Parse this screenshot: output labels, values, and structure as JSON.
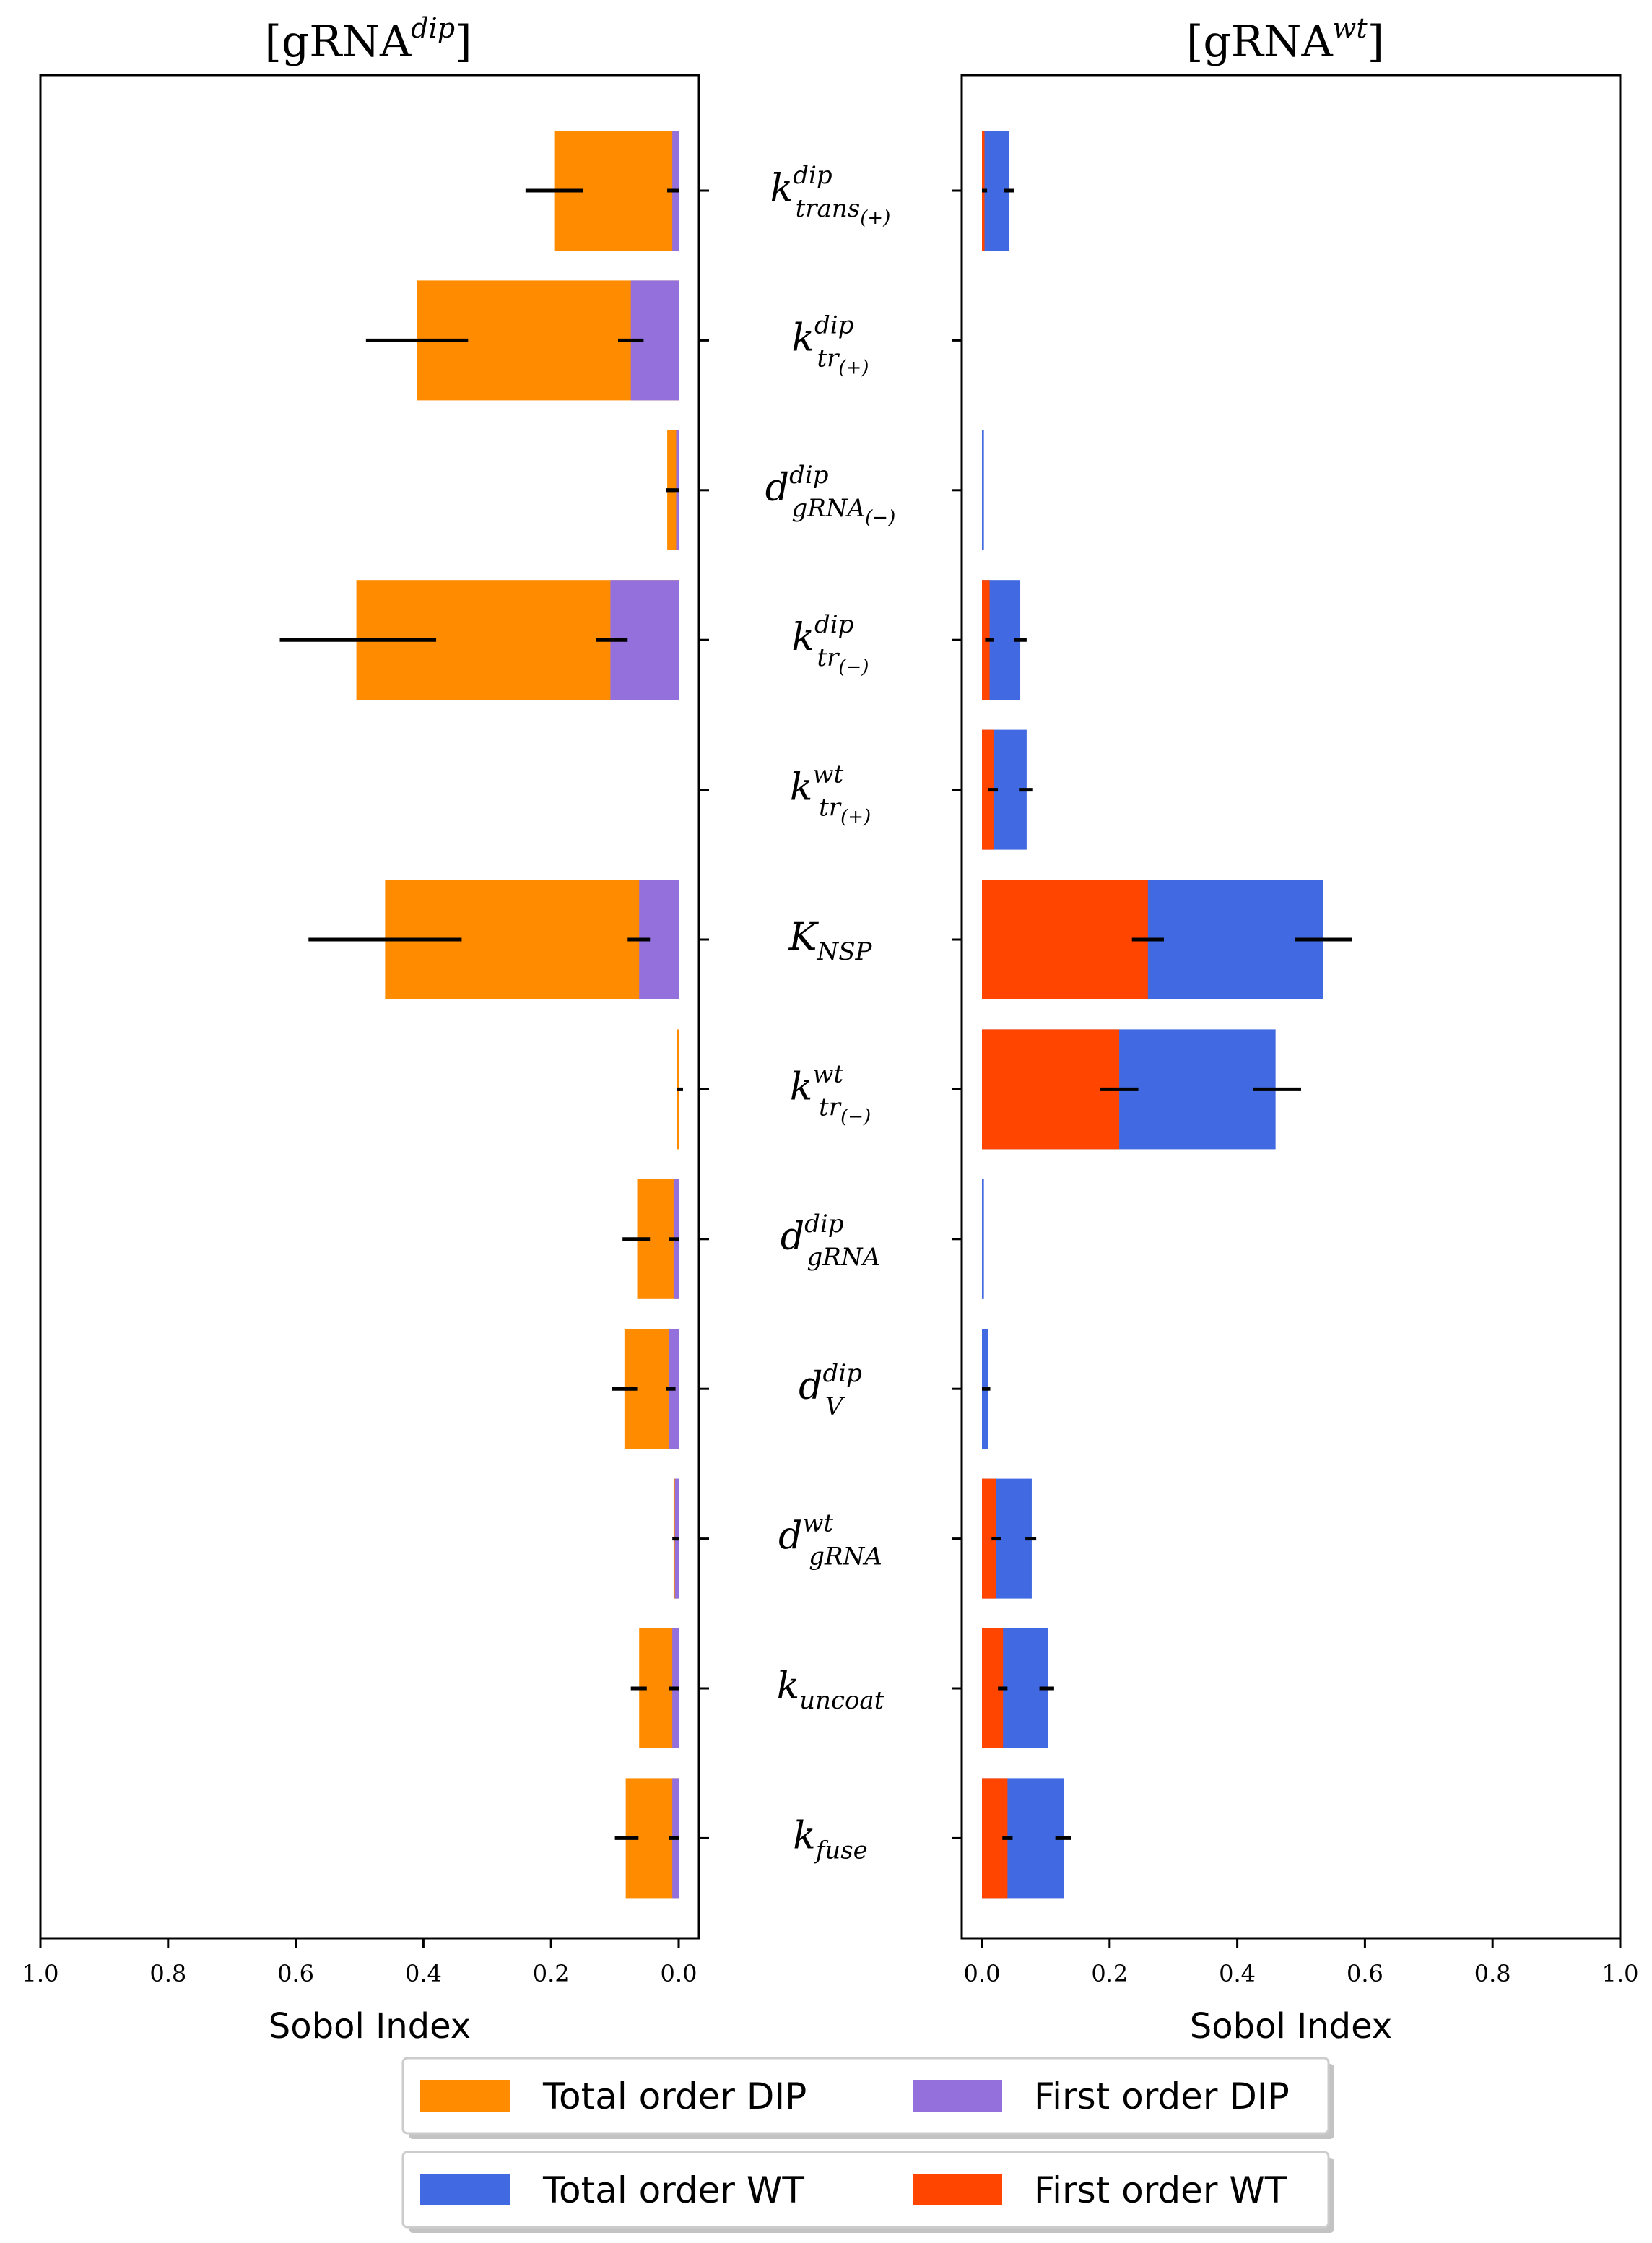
{
  "chart_data": [
    {
      "type": "bar",
      "title": "[gRNA^{dip}]",
      "title_base": "[gRNA",
      "title_sup": "dip",
      "title_end": "]",
      "xlabel": "Sobol Index",
      "xlim": [
        1.0,
        0.0
      ],
      "ticks": [
        "1.0",
        "0.8",
        "0.6",
        "0.4",
        "0.2",
        "0.0"
      ],
      "tick_values": [
        1.0,
        0.8,
        0.6,
        0.4,
        0.2,
        0.0
      ],
      "categories": [
        "k_trans(+)^dip",
        "k_tr(+)^dip",
        "d_gRNA(-)^dip",
        "k_tr(-)^dip",
        "k_tr(+)^wt",
        "K_NSP",
        "k_tr(-)^wt",
        "d_gRNA^dip",
        "d_V^dip",
        "d_gRNA^wt",
        "k_uncoat",
        "k_fuse"
      ],
      "series": [
        {
          "name": "Total order DIP",
          "color": "#FF8C00",
          "values": [
            0.195,
            0.41,
            0.018,
            0.505,
            0.0,
            0.46,
            0.003,
            0.065,
            0.085,
            0.008,
            0.062,
            0.083
          ],
          "err_low": [
            0.15,
            0.33,
            0.005,
            0.38,
            null,
            0.34,
            0.0,
            0.045,
            0.065,
            0.0,
            0.05,
            0.063
          ],
          "err_high": [
            0.24,
            0.49,
            0.02,
            0.625,
            null,
            0.58,
            0.003,
            0.088,
            0.105,
            0.01,
            0.075,
            0.1
          ]
        },
        {
          "name": "First order DIP",
          "color": "#9370DB",
          "values": [
            0.01,
            0.075,
            0.004,
            0.107,
            0.0,
            0.062,
            0.0,
            0.008,
            0.015,
            0.006,
            0.01,
            0.01
          ],
          "err_low": [
            0.0,
            0.055,
            0.0,
            0.08,
            null,
            0.045,
            null,
            0.0,
            0.005,
            0.0,
            0.0,
            0.0
          ],
          "err_high": [
            0.018,
            0.095,
            0.02,
            0.13,
            null,
            0.08,
            null,
            0.015,
            0.02,
            0.008,
            0.015,
            0.015
          ]
        }
      ]
    },
    {
      "type": "bar",
      "title": "[gRNA^{wt}]",
      "title_base": "[gRNA",
      "title_sup": "wt",
      "title_end": "]",
      "xlabel": "Sobol Index",
      "xlim": [
        0.0,
        1.0
      ],
      "ticks": [
        "0.0",
        "0.2",
        "0.4",
        "0.6",
        "0.8",
        "1.0"
      ],
      "tick_values": [
        0.0,
        0.2,
        0.4,
        0.6,
        0.8,
        1.0
      ],
      "categories": [
        "k_trans(+)^dip",
        "k_tr(+)^dip",
        "d_gRNA(-)^dip",
        "k_tr(-)^dip",
        "k_tr(+)^wt",
        "K_NSP",
        "k_tr(-)^wt",
        "d_gRNA^dip",
        "d_V^dip",
        "d_gRNA^wt",
        "k_uncoat",
        "k_fuse"
      ],
      "series": [
        {
          "name": "Total order WT",
          "color": "#4169E1",
          "values": [
            0.043,
            0.0,
            0.003,
            0.06,
            0.07,
            0.535,
            0.46,
            0.003,
            0.01,
            0.078,
            0.103,
            0.128
          ],
          "err_low": [
            0.035,
            null,
            null,
            0.05,
            0.058,
            0.49,
            0.425,
            null,
            0.0,
            0.068,
            0.09,
            0.115
          ],
          "err_high": [
            0.05,
            null,
            null,
            0.07,
            0.08,
            0.58,
            0.5,
            null,
            0.013,
            0.085,
            0.113,
            0.14
          ]
        },
        {
          "name": "First order WT",
          "color": "#FF4500",
          "values": [
            0.004,
            0.0,
            0.0,
            0.012,
            0.018,
            0.26,
            0.215,
            0.0,
            0.0,
            0.022,
            0.033,
            0.04
          ],
          "err_low": [
            0.0,
            null,
            null,
            0.005,
            0.01,
            0.235,
            0.185,
            null,
            null,
            0.015,
            0.025,
            0.032
          ],
          "err_high": [
            0.008,
            null,
            null,
            0.018,
            0.025,
            0.285,
            0.245,
            null,
            null,
            0.03,
            0.04,
            0.048
          ]
        }
      ]
    }
  ],
  "parameters": [
    {
      "base": "k",
      "sup": "dip",
      "sub": "trans",
      "subsub": "(+)"
    },
    {
      "base": "k",
      "sup": "dip",
      "sub": "tr",
      "subsub": "(+)"
    },
    {
      "base": "d",
      "sup": "dip",
      "sub": "gRNA",
      "subsub": "(−)"
    },
    {
      "base": "k",
      "sup": "dip",
      "sub": "tr",
      "subsub": "(−)"
    },
    {
      "base": "k",
      "sup": "wt",
      "sub": "tr",
      "subsub": "(+)"
    },
    {
      "base": "K",
      "sup": "",
      "sub": "NSP",
      "subsub": ""
    },
    {
      "base": "k",
      "sup": "wt",
      "sub": "tr",
      "subsub": "(−)"
    },
    {
      "base": "d",
      "sup": "dip",
      "sub": "gRNA",
      "subsub": ""
    },
    {
      "base": "d",
      "sup": "dip",
      "sub": "V",
      "subsub": ""
    },
    {
      "base": "d",
      "sup": "wt",
      "sub": "gRNA",
      "subsub": ""
    },
    {
      "base": "k",
      "sup": "",
      "sub": "uncoat",
      "subsub": ""
    },
    {
      "base": "k",
      "sup": "",
      "sub": "fuse",
      "subsub": ""
    }
  ],
  "legend": {
    "row1": [
      {
        "label": "Total order DIP",
        "color": "#FF8C00"
      },
      {
        "label": "First order DIP",
        "color": "#9370DB"
      }
    ],
    "row2": [
      {
        "label": "Total order WT",
        "color": "#4169E1"
      },
      {
        "label": "First order WT",
        "color": "#FF4500"
      }
    ]
  }
}
